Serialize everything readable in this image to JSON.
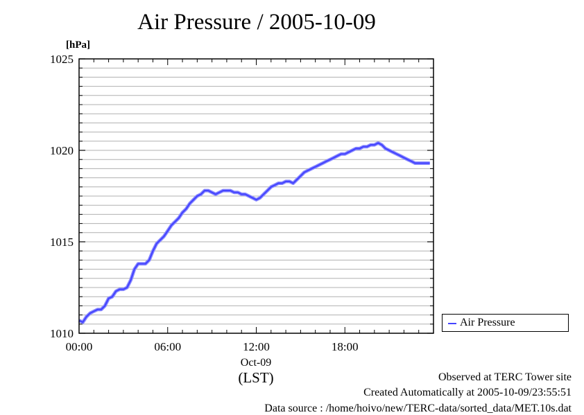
{
  "chart_data": {
    "type": "line",
    "title": "Air Pressure / 2005-10-09",
    "ylabel": "[hPa]",
    "ylim": [
      1010,
      1025
    ],
    "y_ticks": [
      "1010",
      "1015",
      "1020",
      "1025"
    ],
    "xlim": [
      0,
      24
    ],
    "x_ticks": [
      {
        "value": 0,
        "label": "00:00"
      },
      {
        "value": 6,
        "label": "06:00"
      },
      {
        "value": 12,
        "label": "12:00"
      },
      {
        "value": 18,
        "label": "18:00"
      }
    ],
    "x_date_label": "Oct-09",
    "x_unit_label": "(LST)",
    "grid": true,
    "legend_position": "right-bottom",
    "series": [
      {
        "name": "Air Pressure",
        "color": "#4444ff",
        "x": [
          0.0,
          0.25,
          0.5,
          0.75,
          1.0,
          1.25,
          1.5,
          1.75,
          2.0,
          2.25,
          2.5,
          2.75,
          3.0,
          3.25,
          3.5,
          3.75,
          4.0,
          4.25,
          4.5,
          4.75,
          5.0,
          5.25,
          5.5,
          5.75,
          6.0,
          6.25,
          6.5,
          6.75,
          7.0,
          7.25,
          7.5,
          7.75,
          8.0,
          8.25,
          8.5,
          8.75,
          9.0,
          9.25,
          9.5,
          9.75,
          10.0,
          10.25,
          10.5,
          10.75,
          11.0,
          11.25,
          11.5,
          11.75,
          12.0,
          12.25,
          12.5,
          12.75,
          13.0,
          13.25,
          13.5,
          13.75,
          14.0,
          14.25,
          14.5,
          14.75,
          15.0,
          15.25,
          15.5,
          15.75,
          16.0,
          16.25,
          16.5,
          16.75,
          17.0,
          17.25,
          17.5,
          17.75,
          18.0,
          18.25,
          18.5,
          18.75,
          19.0,
          19.25,
          19.5,
          19.75,
          20.0,
          20.25,
          20.5,
          20.75,
          21.0,
          21.25,
          21.5,
          21.75,
          22.0,
          22.25,
          22.5,
          22.75,
          23.0,
          23.25,
          23.5,
          23.75
        ],
        "values": [
          1010.7,
          1010.6,
          1010.9,
          1011.1,
          1011.2,
          1011.3,
          1011.3,
          1011.5,
          1011.9,
          1012.0,
          1012.3,
          1012.4,
          1012.4,
          1012.5,
          1012.9,
          1013.5,
          1013.8,
          1013.8,
          1013.8,
          1014.0,
          1014.5,
          1014.9,
          1015.1,
          1015.3,
          1015.6,
          1015.9,
          1016.1,
          1016.3,
          1016.6,
          1016.8,
          1017.1,
          1017.3,
          1017.5,
          1017.6,
          1017.8,
          1017.8,
          1017.7,
          1017.6,
          1017.7,
          1017.8,
          1017.8,
          1017.8,
          1017.7,
          1017.7,
          1017.6,
          1017.6,
          1017.5,
          1017.4,
          1017.3,
          1017.4,
          1017.6,
          1017.8,
          1018.0,
          1018.1,
          1018.2,
          1018.2,
          1018.3,
          1018.3,
          1018.2,
          1018.4,
          1018.6,
          1018.8,
          1018.9,
          1019.0,
          1019.1,
          1019.2,
          1019.3,
          1019.4,
          1019.5,
          1019.6,
          1019.7,
          1019.8,
          1019.8,
          1019.9,
          1020.0,
          1020.1,
          1020.1,
          1020.2,
          1020.2,
          1020.3,
          1020.3,
          1020.4,
          1020.3,
          1020.1,
          1020.0,
          1019.9,
          1019.8,
          1019.7,
          1019.6,
          1019.5,
          1019.4,
          1019.3,
          1019.3,
          1019.3,
          1019.3,
          1019.3
        ]
      }
    ]
  },
  "footer": {
    "line1": "Observed at TERC Tower site",
    "line2": "Created Automatically at 2005-10-09/23:55:51",
    "line3": "Data source : /home/hoivo/new/TERC-data/sorted_data/MET.10s.dat"
  }
}
